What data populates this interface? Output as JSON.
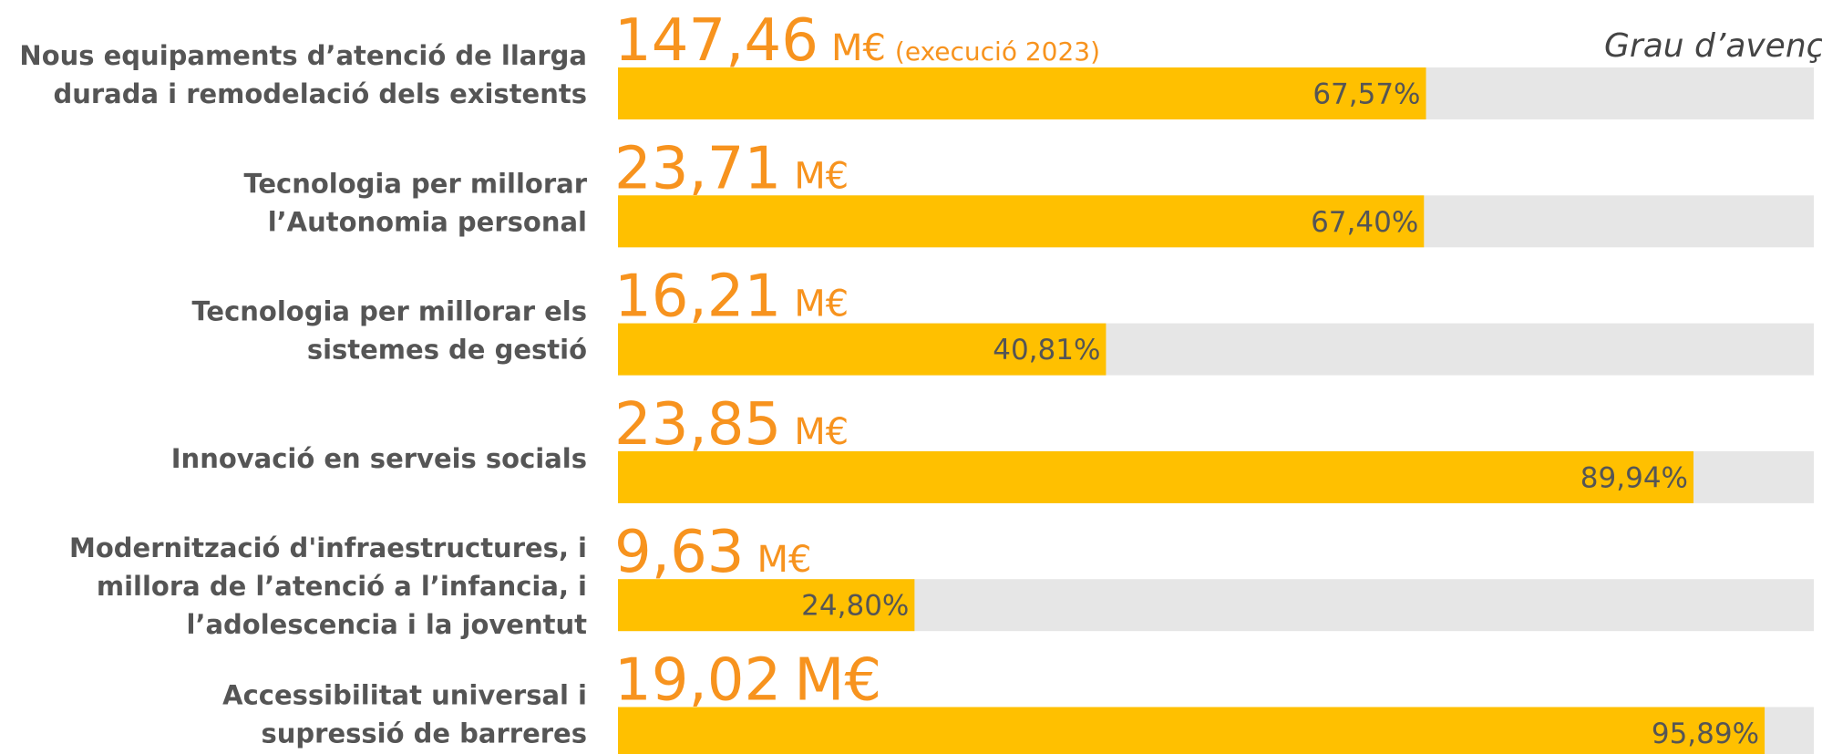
{
  "chart_data": {
    "type": "bar",
    "header": "Grau d’avenç",
    "categories": [
      [
        "Nous equipaments d’atenció de llarga",
        "durada i remodelació dels existents"
      ],
      [
        "Tecnologia per millorar",
        "l’Autonomia personal"
      ],
      [
        "Tecnologia per millorar els",
        "sistemes de gestió"
      ],
      [
        "Innovació en serveis socials"
      ],
      [
        "Modernització d'infraestructures, i",
        "millora de l’atenció a l’infancia, i",
        "l’adolescencia i la joventut"
      ],
      [
        "Accessibilitat universal i",
        "supressió de barreres"
      ]
    ],
    "amounts": [
      147.46,
      23.71,
      16.21,
      23.85,
      9.63,
      19.02
    ],
    "amount_labels": [
      "147,46",
      "23,71",
      "16,21",
      "23,85",
      "9,63",
      "19,02"
    ],
    "amount_unit": "M€",
    "annotation": "(execució 2023)",
    "values": [
      67.57,
      67.4,
      40.81,
      89.94,
      24.8,
      95.89
    ],
    "value_labels": [
      "67,57%",
      "67,40%",
      "40,81%",
      "89,94%",
      "24,80%",
      "95,89%"
    ],
    "xlim": [
      0,
      100
    ],
    "color": "#ffc000",
    "track_color": "#e6e6e6"
  }
}
